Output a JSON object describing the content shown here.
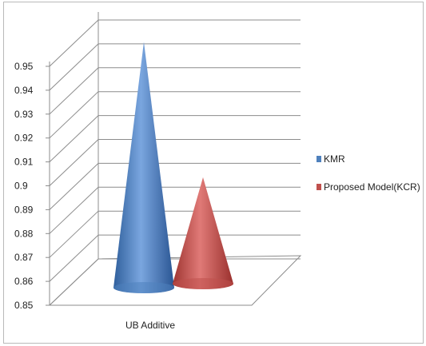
{
  "chart_data": {
    "type": "bar",
    "subtype": "3d-cone",
    "categories": [
      "UB Additive"
    ],
    "series": [
      {
        "name": "KMR",
        "values": [
          0.9505
        ],
        "color": "#4f81bd"
      },
      {
        "name": "Proposed Model(KCR)",
        "values": [
          0.8925
        ],
        "color": "#c0504d"
      }
    ],
    "yticks": [
      "0.85",
      "0.86",
      "0.87",
      "0.88",
      "0.89",
      "0.9",
      "0.91",
      "0.92",
      "0.93",
      "0.94",
      "0.95"
    ],
    "ylim": [
      0.85,
      0.95
    ],
    "grid": true,
    "legend": "right"
  }
}
